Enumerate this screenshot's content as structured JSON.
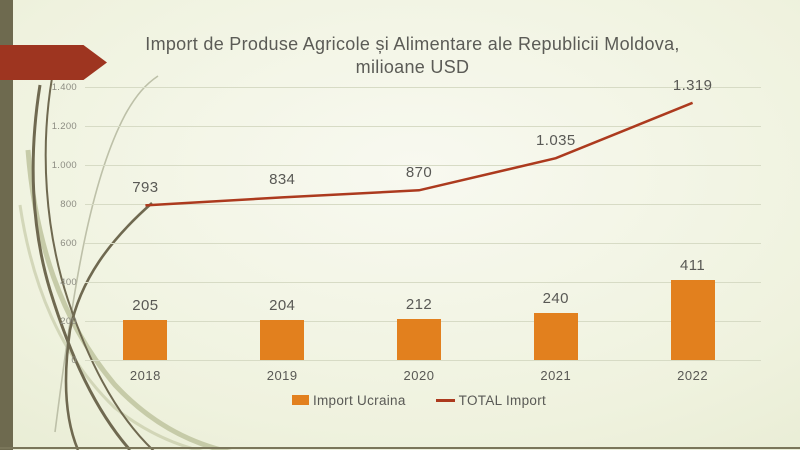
{
  "slide": {
    "title_line1": "Import de Produse Agricole și Alimentare ale Republicii Moldova,",
    "title_line2": "milioane USD"
  },
  "chart_data": {
    "type": "bar",
    "subtype": "combo bar + line",
    "title": "Import de Produse Agricole și Alimentare ale Republicii Moldova, milioane USD",
    "categories": [
      "2018",
      "2019",
      "2020",
      "2021",
      "2022"
    ],
    "series": [
      {
        "name": "Import Ucraina",
        "type": "bar",
        "values": [
          205,
          204,
          212,
          240,
          411
        ],
        "labels": [
          "205",
          "204",
          "212",
          "240",
          "411"
        ]
      },
      {
        "name": "TOTAL Import",
        "type": "line",
        "values": [
          793,
          834,
          870,
          1035,
          1319
        ],
        "labels": [
          "793",
          "834",
          "870",
          "1.035",
          "1.319"
        ]
      }
    ],
    "y_ticks": [
      "0",
      "200",
      "400",
      "600",
      "800",
      "1.000",
      "1.200",
      "1.400"
    ],
    "y_tick_values": [
      0,
      200,
      400,
      600,
      800,
      1000,
      1200,
      1400
    ],
    "ylim": [
      0,
      1400
    ],
    "xlabel": "",
    "ylabel": "",
    "grid": true,
    "legend_position": "bottom"
  },
  "colors": {
    "background_center": "#f8f9f0",
    "background_edge": "#dfe4c6",
    "left_bar": "#6e6a4f",
    "accent_arrow": "#9e3520",
    "bar_fill": "#e2801e",
    "line_stroke": "#ac3a1e",
    "gridline": "#d7dbc5",
    "title_text": "#5b5b56",
    "label_text": "#595955",
    "tick_text": "#8c8c82",
    "curve_dark": "#6f6950",
    "curve_light": "#c6cba8",
    "curve_faint": "#bdc0a8",
    "bottom_line": "#7a765a"
  }
}
